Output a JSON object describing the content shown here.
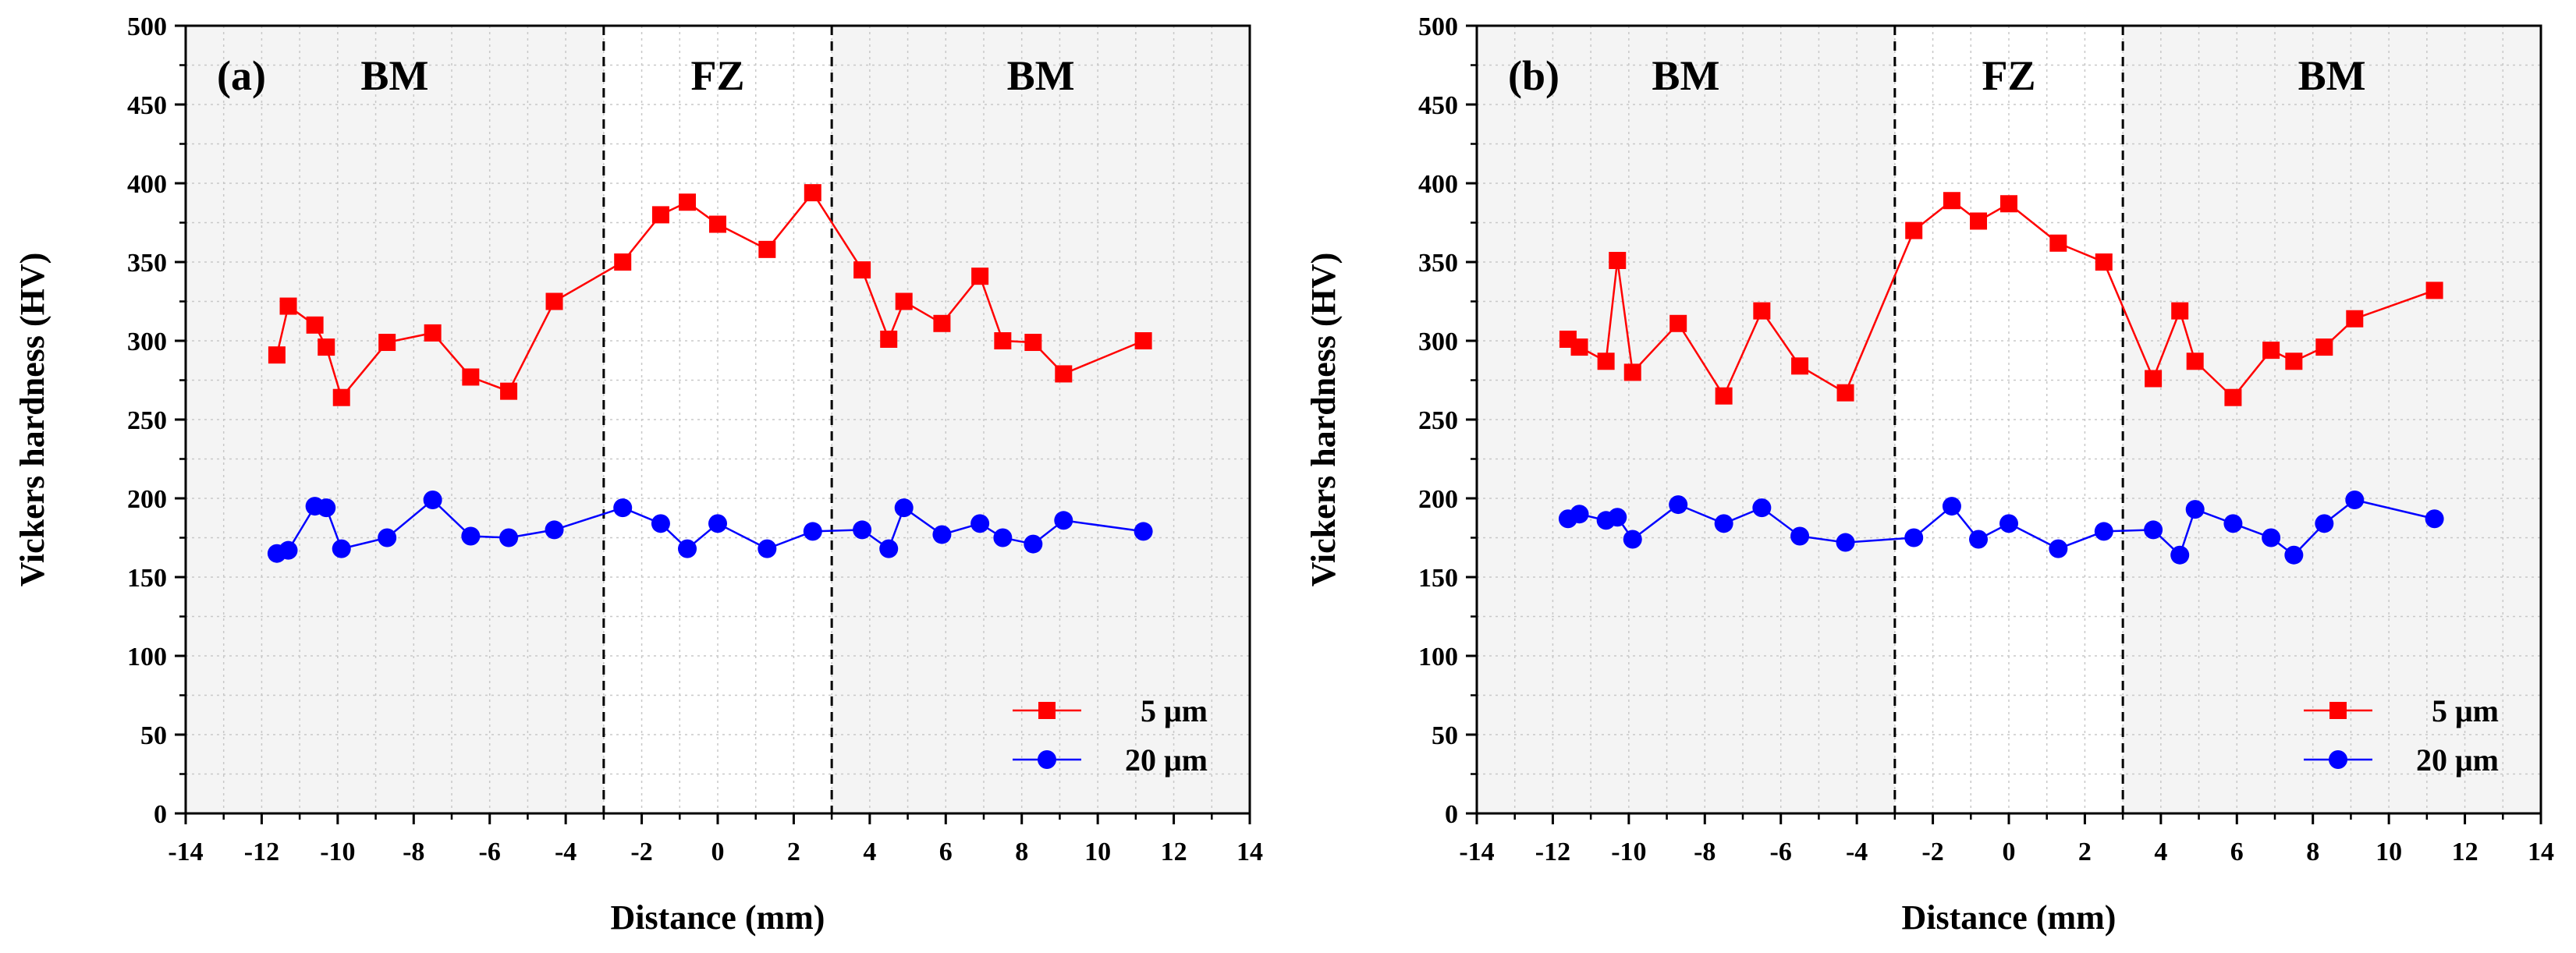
{
  "chart_data": [
    {
      "type": "line",
      "panel_label": "(a)",
      "xlabel": "Distance (mm)",
      "ylabel": "Vickers hardness (HV)",
      "xlim": [
        -14,
        14
      ],
      "ylim": [
        0,
        500
      ],
      "xticks": [
        -14,
        -12,
        -10,
        -8,
        -6,
        -4,
        -2,
        0,
        2,
        4,
        6,
        8,
        10,
        12,
        14
      ],
      "yticks": [
        0,
        50,
        100,
        150,
        200,
        250,
        300,
        350,
        400,
        450,
        500
      ],
      "grid": true,
      "legend_position": "bottom-right",
      "regions": [
        {
          "label": "BM",
          "from": -14,
          "to": -3,
          "shaded": true
        },
        {
          "label": "FZ",
          "from": -3,
          "to": 3,
          "shaded": false
        },
        {
          "label": "BM",
          "from": 3,
          "to": 14,
          "shaded": true
        }
      ],
      "boundaries": [
        -3,
        3
      ],
      "series": [
        {
          "name": "5 μm",
          "color": "#ff0000",
          "marker": "square",
          "x": [
            -11.6,
            -11.3,
            -10.6,
            -10.3,
            -9.9,
            -8.7,
            -7.5,
            -6.5,
            -5.5,
            -4.3,
            -2.5,
            -1.5,
            -0.8,
            0,
            1.3,
            2.5,
            3.8,
            4.5,
            4.9,
            5.9,
            6.9,
            7.5,
            8.3,
            9.1,
            11.2
          ],
          "y": [
            291,
            322,
            310,
            296,
            264,
            299,
            305,
            277,
            268,
            325,
            350,
            380,
            388,
            374,
            358,
            394,
            345,
            301,
            325,
            311,
            341,
            300,
            299,
            279,
            300
          ]
        },
        {
          "name": "20 μm",
          "color": "#0000ff",
          "marker": "circle",
          "x": [
            -11.6,
            -11.3,
            -10.6,
            -10.3,
            -9.9,
            -8.7,
            -7.5,
            -6.5,
            -5.5,
            -4.3,
            -2.5,
            -1.5,
            -0.8,
            0,
            1.3,
            2.5,
            3.8,
            4.5,
            4.9,
            5.9,
            6.9,
            7.5,
            8.3,
            9.1,
            11.2
          ],
          "y": [
            165,
            167,
            195,
            194,
            168,
            175,
            199,
            176,
            175,
            180,
            194,
            184,
            168,
            184,
            168,
            179,
            180,
            168,
            194,
            177,
            184,
            175,
            171,
            186,
            179
          ]
        }
      ]
    },
    {
      "type": "line",
      "panel_label": "(b)",
      "xlabel": "Distance (mm)",
      "ylabel": "Vickers hardness (HV)",
      "xlim": [
        -14,
        14
      ],
      "ylim": [
        0,
        500
      ],
      "xticks": [
        -14,
        -12,
        -10,
        -8,
        -6,
        -4,
        -2,
        0,
        2,
        4,
        6,
        8,
        10,
        12,
        14
      ],
      "yticks": [
        0,
        50,
        100,
        150,
        200,
        250,
        300,
        350,
        400,
        450,
        500
      ],
      "grid": true,
      "legend_position": "bottom-right",
      "regions": [
        {
          "label": "BM",
          "from": -14,
          "to": -3,
          "shaded": true
        },
        {
          "label": "FZ",
          "from": -3,
          "to": 3,
          "shaded": false
        },
        {
          "label": "BM",
          "from": 3,
          "to": 14,
          "shaded": true
        }
      ],
      "boundaries": [
        -3,
        3
      ],
      "series": [
        {
          "name": "5 μm",
          "color": "#ff0000",
          "marker": "square",
          "x": [
            -11.6,
            -11.3,
            -10.6,
            -10.3,
            -9.9,
            -8.7,
            -7.5,
            -6.5,
            -5.5,
            -4.3,
            -2.5,
            -1.5,
            -0.8,
            0,
            1.3,
            2.5,
            3.8,
            4.5,
            4.9,
            5.9,
            6.9,
            7.5,
            8.3,
            9.1,
            11.2
          ],
          "y": [
            301,
            296,
            287,
            351,
            280,
            311,
            265,
            319,
            284,
            267,
            370,
            389,
            376,
            387,
            362,
            350,
            276,
            319,
            287,
            264,
            294,
            287,
            296,
            314,
            332
          ]
        },
        {
          "name": "20 μm",
          "color": "#0000ff",
          "marker": "circle",
          "x": [
            -11.6,
            -11.3,
            -10.6,
            -10.3,
            -9.9,
            -8.7,
            -7.5,
            -6.5,
            -5.5,
            -4.3,
            -2.5,
            -1.5,
            -0.8,
            0,
            1.3,
            2.5,
            3.8,
            4.5,
            4.9,
            5.9,
            6.9,
            7.5,
            8.3,
            9.1,
            11.2
          ],
          "y": [
            187,
            190,
            186,
            188,
            174,
            196,
            184,
            194,
            176,
            172,
            175,
            195,
            174,
            184,
            168,
            179,
            180,
            164,
            193,
            184,
            175,
            164,
            184,
            199,
            187
          ]
        }
      ]
    }
  ]
}
